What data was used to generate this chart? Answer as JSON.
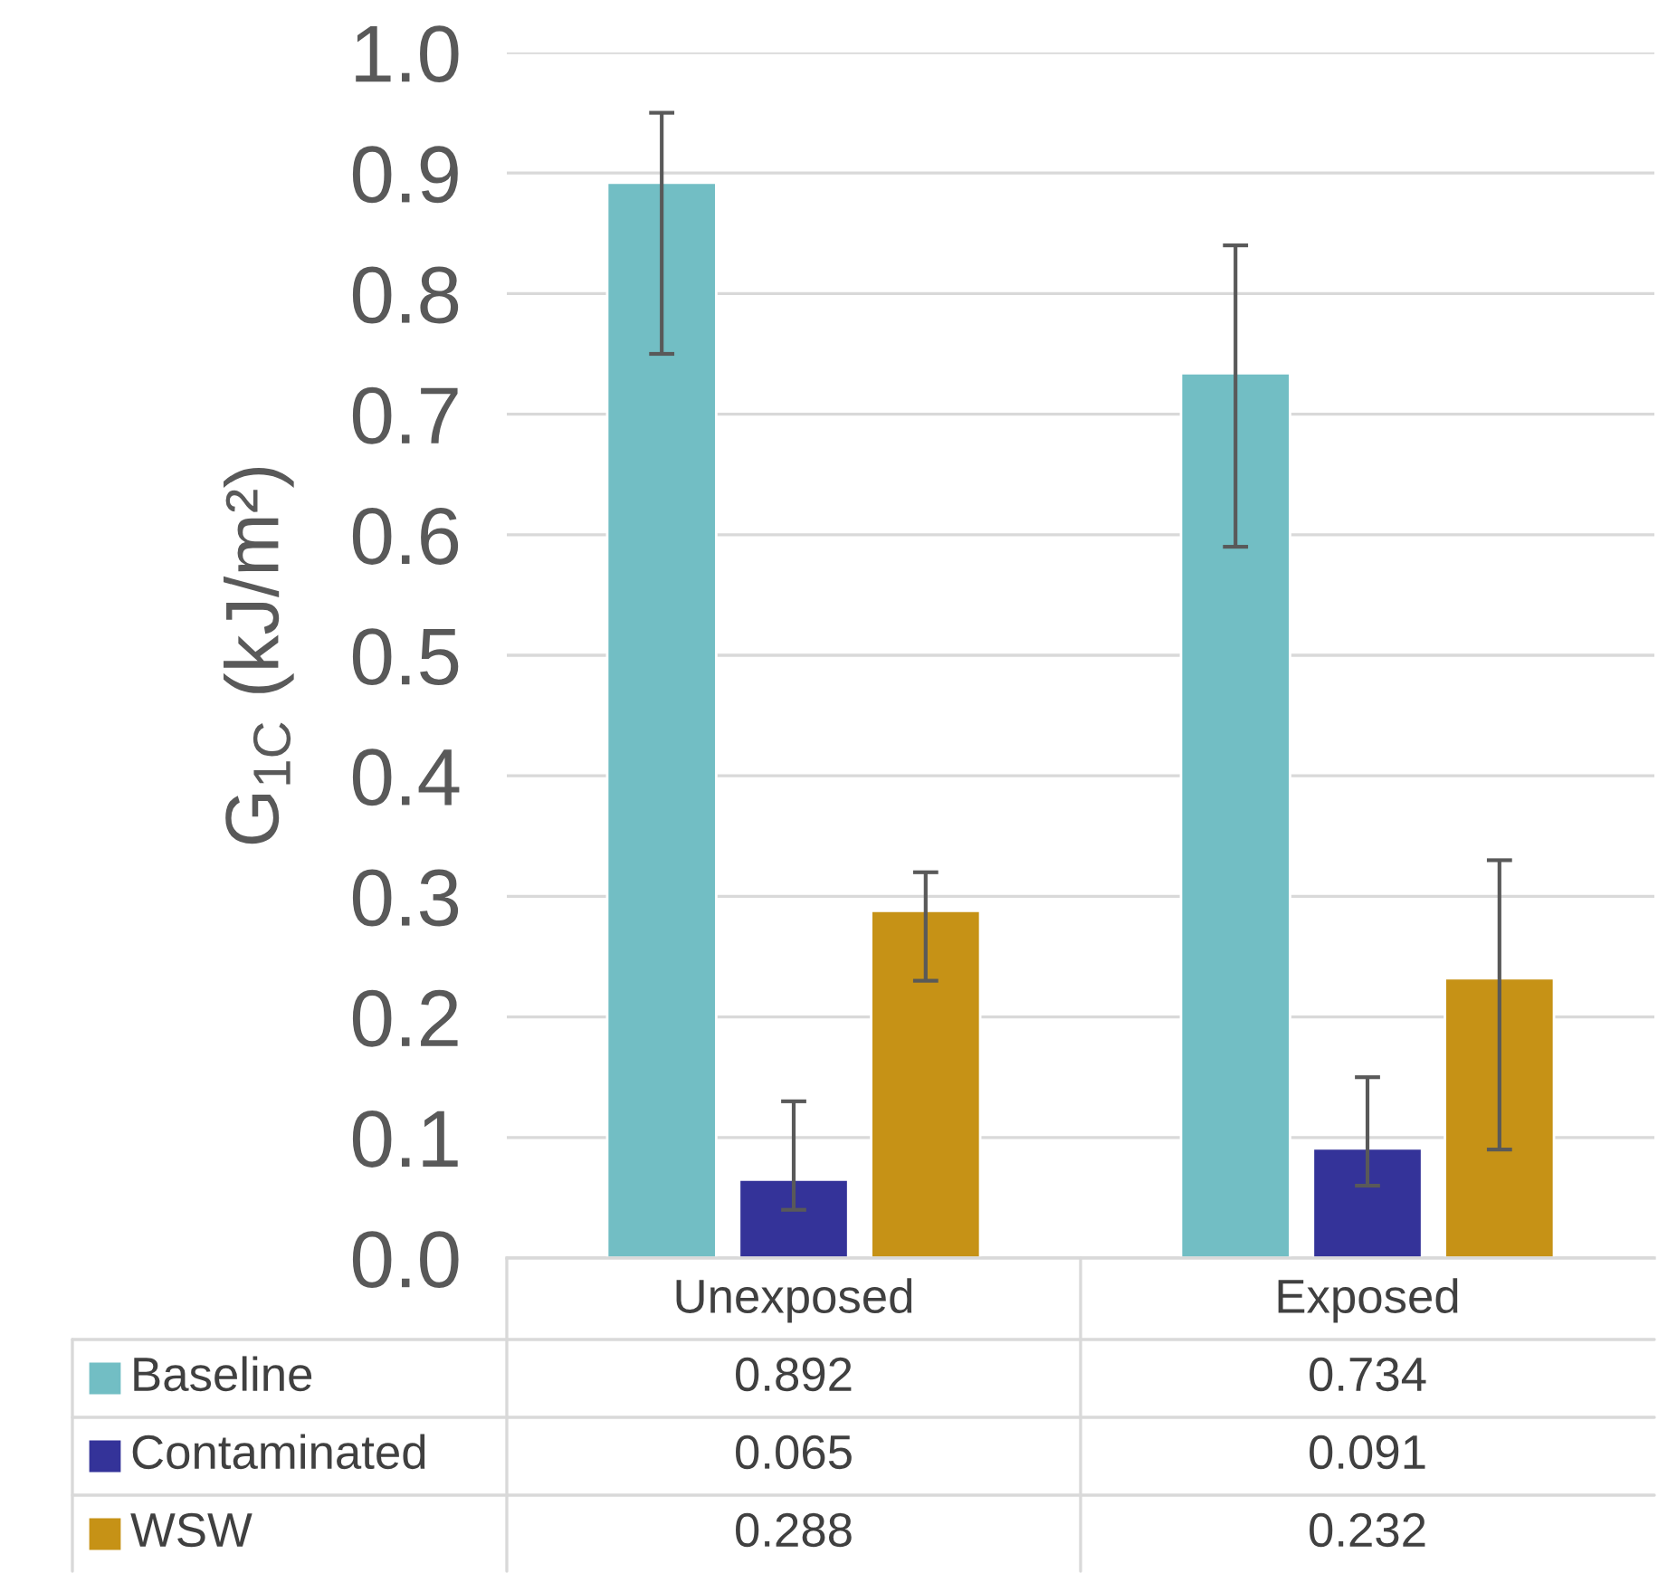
{
  "chart_data": {
    "type": "bar",
    "ylabel": "G$_{1C}$ (kJ/m²)",
    "categories": [
      "Unexposed",
      "Exposed"
    ],
    "series": [
      {
        "name": "Baseline",
        "color": "#72bec4",
        "values": [
          0.892,
          0.734
        ],
        "errors": [
          [
            0.75,
            0.95
          ],
          [
            0.59,
            0.84
          ]
        ]
      },
      {
        "name": "Contaminated",
        "color": "#343399",
        "values": [
          0.065,
          0.091
        ],
        "errors": [
          [
            0.04,
            0.13
          ],
          [
            0.06,
            0.15
          ]
        ]
      },
      {
        "name": "WSW",
        "color": "#c69216",
        "values": [
          0.288,
          0.232
        ],
        "errors": [
          [
            0.23,
            0.32
          ],
          [
            0.09,
            0.33
          ]
        ]
      }
    ],
    "ylim": [
      0,
      1.0
    ],
    "yticks": [
      {
        "value": 0,
        "label": "0.0"
      },
      {
        "value": 0.1,
        "label": "0.1"
      },
      {
        "value": 0.2,
        "label": "0.2"
      },
      {
        "value": 0.3,
        "label": "0.3"
      },
      {
        "value": 0.4,
        "label": "0.4"
      },
      {
        "value": 0.5,
        "label": "0.5"
      },
      {
        "value": 0.6,
        "label": "0.6"
      },
      {
        "value": 0.7,
        "label": "0.7"
      },
      {
        "value": 0.8,
        "label": "0.8"
      },
      {
        "value": 0.9,
        "label": "0.9"
      },
      {
        "value": 1.0,
        "label": "1.0"
      }
    ],
    "grid": "y",
    "data_labels": true,
    "legend": "bottom"
  }
}
